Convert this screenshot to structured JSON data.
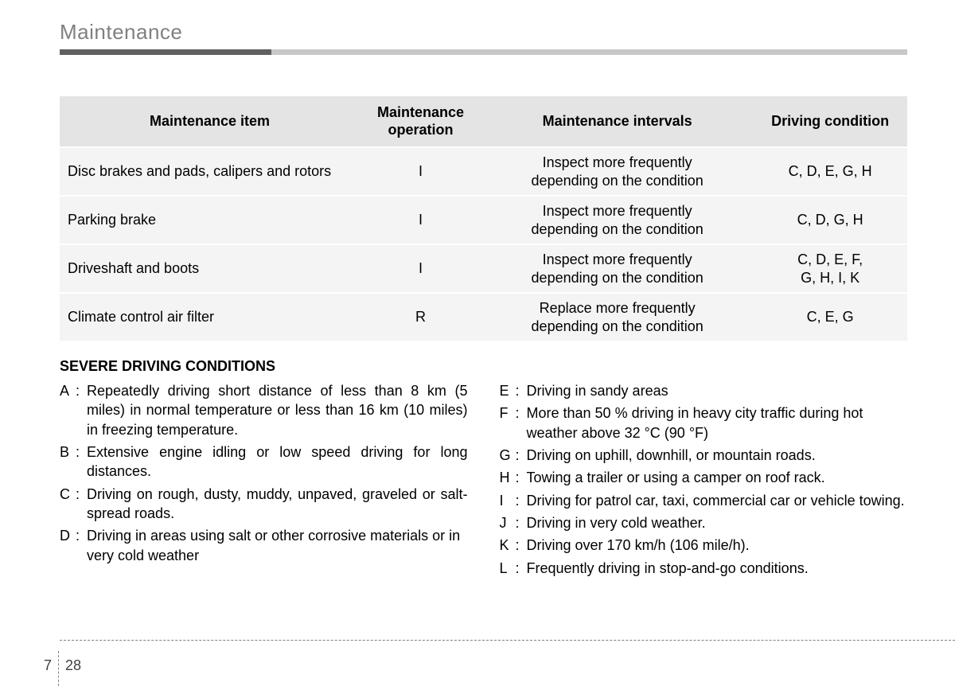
{
  "page_title": "Maintenance",
  "table": {
    "headers": {
      "item": "Maintenance item",
      "operation": "Maintenance operation",
      "intervals": "Maintenance intervals",
      "condition": "Driving condition"
    },
    "rows": [
      {
        "item": "Disc brakes and pads, calipers and rotors",
        "op": "I",
        "interval": "Inspect more frequently depending on the condition",
        "cond": "C, D, E, G, H"
      },
      {
        "item": "Parking brake",
        "op": "I",
        "interval": "Inspect more frequently depending on the condition",
        "cond": "C, D, G, H"
      },
      {
        "item": "Driveshaft and boots",
        "op": "I",
        "interval": "Inspect more frequently depending on the condition",
        "cond": "C, D, E, F, G, H, I, K"
      },
      {
        "item": "Climate control air filter",
        "op": "R",
        "interval": "Replace more frequently depending on the condition",
        "cond": "C, E, G"
      }
    ]
  },
  "severe_heading": "SEVERE DRIVING CONDITIONS",
  "conditions_left": [
    {
      "label": "A",
      "text": "Repeatedly driving short distance of less than 8 km (5 miles) in normal temperature or less than 16 km (10 miles) in freezing temperature.",
      "justify": true
    },
    {
      "label": "B",
      "text": "Extensive engine idling or low speed driving for long distances.",
      "justify": true
    },
    {
      "label": "C",
      "text": "Driving on rough, dusty, muddy, unpaved, graveled or salt-spread roads.",
      "justify": true
    },
    {
      "label": "D",
      "text": "Driving in areas using salt or other corrosive materials or in very cold weather",
      "justify": false
    }
  ],
  "conditions_right": [
    {
      "label": "E",
      "text": "Driving in sandy areas"
    },
    {
      "label": "F",
      "text": "More than 50 % driving in heavy city traffic during hot weather above 32 °C (90 °F)"
    },
    {
      "label": "G",
      "text": "Driving on uphill, downhill, or mountain roads."
    },
    {
      "label": "H",
      "text": "Towing a trailer or using a camper on roof rack."
    },
    {
      "label": "I",
      "text": "Driving for patrol car, taxi, commercial car or vehicle towing."
    },
    {
      "label": "J",
      "text": "Driving  in very cold weather."
    },
    {
      "label": "K",
      "text": "Driving over 170 km/h (106 mile/h)."
    },
    {
      "label": "L",
      "text": "Frequently driving in stop-and-go conditions."
    }
  ],
  "page_number": {
    "chapter": "7",
    "page": "28"
  }
}
